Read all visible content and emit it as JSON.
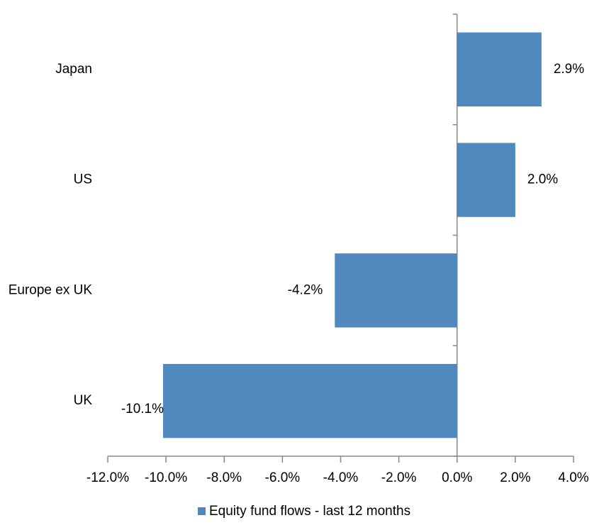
{
  "chart_data": {
    "type": "hbar",
    "categories": [
      "Japan",
      "US",
      "Europe ex UK",
      "UK"
    ],
    "series": [
      {
        "name": "Equity fund flows - last 12 months",
        "color": "#4f89be",
        "values": [
          2.9,
          2.0,
          -4.2,
          -10.1
        ],
        "value_labels": [
          "2.9%",
          "2.0%",
          "-4.2%",
          "-10.1%"
        ]
      }
    ],
    "xlim": [
      -12,
      4
    ],
    "xticks": [
      {
        "value": -12,
        "label": "-12.0%"
      },
      {
        "value": -10,
        "label": "-10.0%"
      },
      {
        "value": -8,
        "label": "-8.0%"
      },
      {
        "value": -6,
        "label": "-6.0%"
      },
      {
        "value": -4,
        "label": "-4.0%"
      },
      {
        "value": -2,
        "label": "-2.0%"
      },
      {
        "value": 0,
        "label": "0.0%"
      },
      {
        "value": 2,
        "label": "2.0%"
      },
      {
        "value": 4,
        "label": "4.0%"
      }
    ],
    "legend": "bottom"
  }
}
